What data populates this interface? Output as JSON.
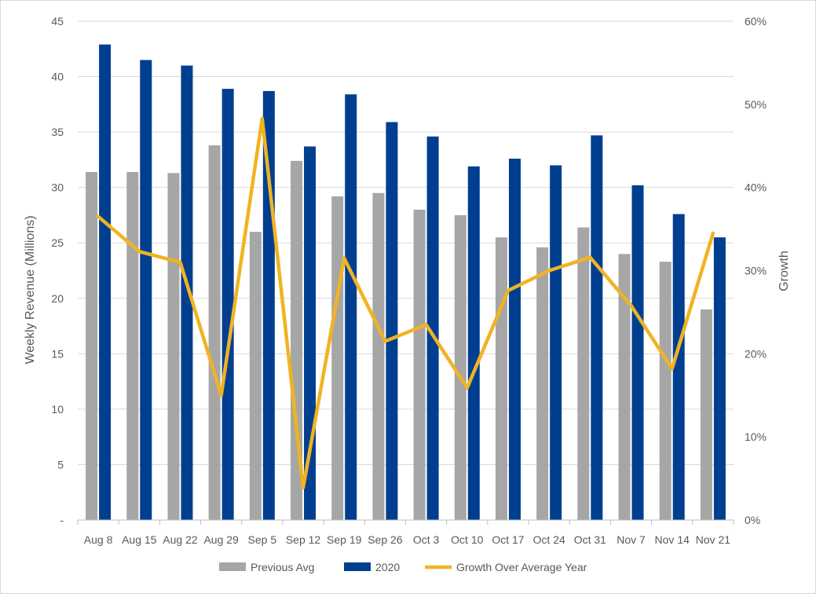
{
  "chart_data": {
    "type": "bar",
    "categories": [
      "Aug 8",
      "Aug 15",
      "Aug 22",
      "Aug 29",
      "Sep 5",
      "Sep 12",
      "Sep 19",
      "Sep 26",
      "Oct 3",
      "Oct 10",
      "Oct 17",
      "Oct 24",
      "Oct 31",
      "Nov 7",
      "Nov 14",
      "Nov 21"
    ],
    "series": [
      {
        "name": "Previous Avg",
        "kind": "bar",
        "axis": "left",
        "color": "#a6a6a6",
        "values": [
          31.4,
          31.4,
          31.3,
          33.8,
          26.0,
          32.4,
          29.2,
          29.5,
          28.0,
          27.5,
          25.5,
          24.6,
          26.4,
          24.0,
          23.3,
          19.0
        ]
      },
      {
        "name": "2020",
        "kind": "bar",
        "axis": "left",
        "color": "#003f8f",
        "values": [
          42.9,
          41.5,
          41.0,
          38.9,
          38.7,
          33.7,
          38.4,
          35.9,
          34.6,
          31.9,
          32.6,
          32.0,
          34.7,
          30.2,
          27.6,
          25.5
        ]
      },
      {
        "name": "Growth Over Average Year",
        "kind": "line",
        "axis": "right",
        "color": "#f0b323",
        "values": [
          36.5,
          32.3,
          31.0,
          15.0,
          48.3,
          3.9,
          31.5,
          21.5,
          23.5,
          15.9,
          27.6,
          30.0,
          31.6,
          25.8,
          18.2,
          34.5
        ]
      }
    ],
    "ylabel": "Weekly Revenue (Millions)",
    "y2label": "Growth",
    "ylim": [
      0,
      45
    ],
    "y2lim": [
      0,
      60
    ],
    "yticks": [
      "-",
      "5",
      "10",
      "15",
      "20",
      "25",
      "30",
      "35",
      "40",
      "45"
    ],
    "y2ticks": [
      "0%",
      "10%",
      "20%",
      "30%",
      "40%",
      "50%",
      "60%"
    ],
    "grid": "horizontal",
    "legend_position": "bottom"
  }
}
